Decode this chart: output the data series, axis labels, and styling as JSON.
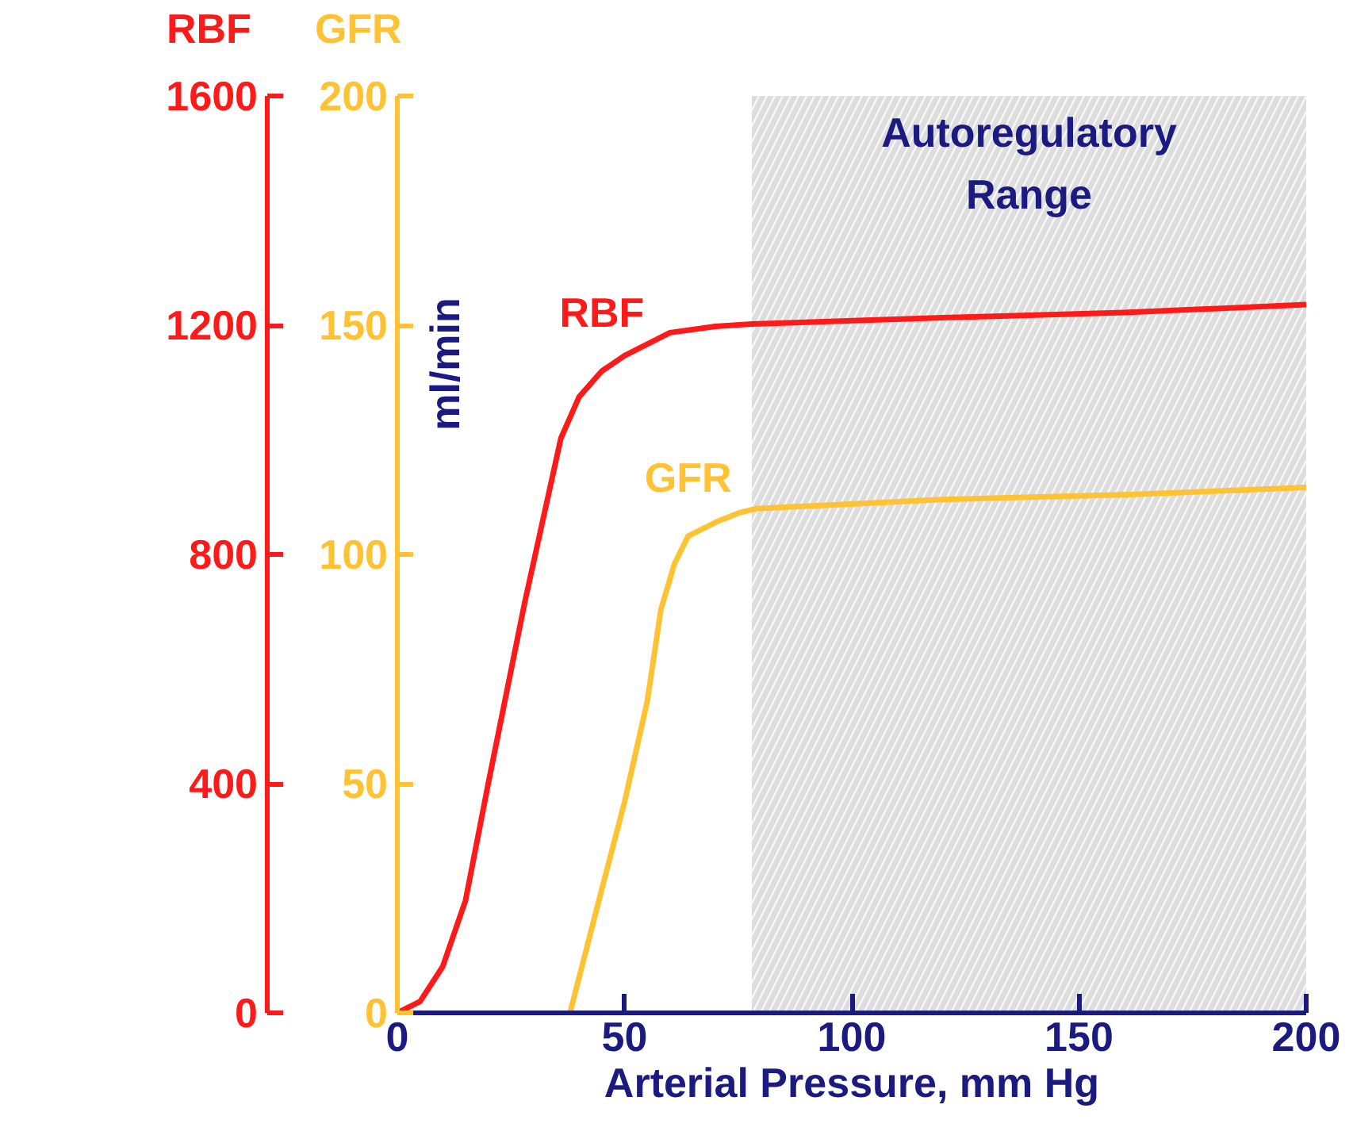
{
  "chart_data": {
    "type": "line",
    "xlabel": "Arterial Pressure, mm Hg",
    "ylabel": "RBF",
    "y2label": "GFR",
    "annotations": [
      "ml/min"
    ],
    "xlim": [
      0,
      200
    ],
    "xticks": [
      0,
      50,
      100,
      150,
      200
    ],
    "ylim": [
      0,
      1600
    ],
    "yticks": [
      0,
      400,
      800,
      1200,
      1600
    ],
    "y2lim": [
      0,
      200
    ],
    "y2ticks": [
      0,
      50,
      100,
      150,
      200
    ],
    "grid": false,
    "legend": false,
    "line_style": "solid",
    "marker": "none",
    "bands": [
      {
        "axis": "x",
        "from": 78,
        "to": 200,
        "label": "Autoregulatory Range",
        "color": "#d9d9d9"
      }
    ],
    "series": [
      {
        "name": "RBF",
        "color": "#ff1a1a",
        "x": [
          0,
          5,
          10,
          15,
          20,
          28,
          36,
          40,
          45,
          50,
          60,
          70,
          78,
          120,
          160,
          200
        ],
        "values": [
          0,
          20,
          81,
          196,
          400,
          715,
          1003,
          1075,
          1120,
          1147,
          1187,
          1198,
          1202,
          1213,
          1222,
          1236
        ]
      },
      {
        "name": "GFR",
        "color": "#ffc233",
        "axis": "y2",
        "x": [
          38,
          45,
          50,
          55,
          58,
          61,
          64,
          70,
          75,
          79,
          120,
          160,
          200
        ],
        "values": [
          0,
          27,
          46,
          68,
          88,
          98,
          104,
          107,
          109,
          110,
          112,
          113,
          114.6
        ]
      }
    ]
  }
}
